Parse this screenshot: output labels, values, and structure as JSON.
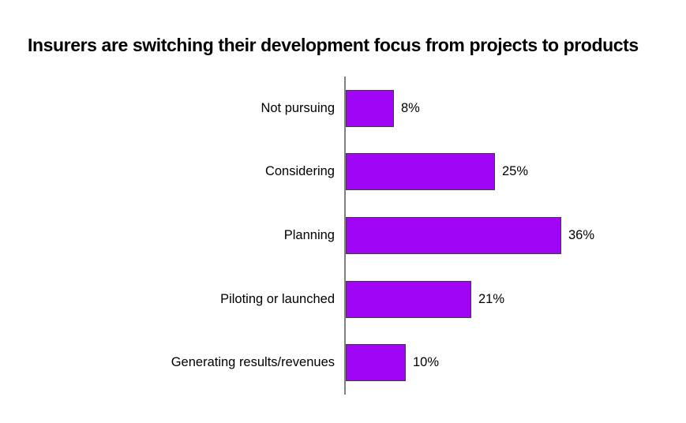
{
  "chart_data": {
    "type": "bar",
    "orientation": "horizontal",
    "title": "Insurers are switching their development focus from projects to products",
    "categories": [
      "Not pursuing",
      "Considering",
      "Planning",
      "Piloting or launched",
      "Generating results/revenues"
    ],
    "values": [
      8,
      25,
      36,
      21,
      10
    ],
    "value_labels": [
      "8%",
      "25%",
      "36%",
      "21%",
      "10%"
    ],
    "xlabel": "",
    "ylabel": "",
    "xlim": [
      0,
      40
    ],
    "grid": false,
    "legend": false,
    "data_labels_position": "outside-end"
  },
  "colors": {
    "bar_fill": "#A105F6",
    "bar_border": "#3F3F3F",
    "axis_line": "#808080",
    "title_text": "#000000",
    "label_text": "#000000",
    "background": "#FFFFFF"
  }
}
